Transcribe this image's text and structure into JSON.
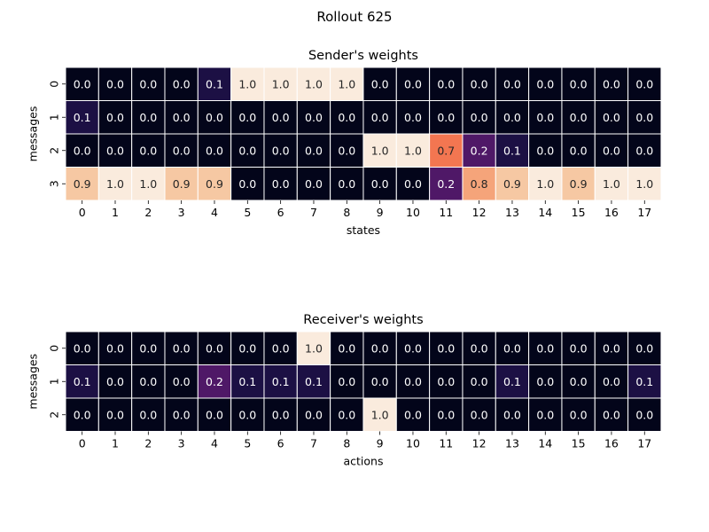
{
  "suptitle": "Rollout 625",
  "chart_data": [
    {
      "type": "heatmap",
      "title": "Sender's weights",
      "xlabel": "states",
      "ylabel": "messages",
      "x_ticks": [
        "0",
        "1",
        "2",
        "3",
        "4",
        "5",
        "6",
        "7",
        "8",
        "9",
        "10",
        "11",
        "12",
        "13",
        "14",
        "15",
        "16",
        "17"
      ],
      "y_ticks": [
        "0",
        "1",
        "2",
        "3"
      ],
      "values": [
        [
          0.0,
          0.0,
          0.0,
          0.0,
          0.1,
          1.0,
          1.0,
          1.0,
          1.0,
          0.0,
          0.0,
          0.0,
          0.0,
          0.0,
          0.0,
          0.0,
          0.0,
          0.0
        ],
        [
          0.1,
          0.0,
          0.0,
          0.0,
          0.0,
          0.0,
          0.0,
          0.0,
          0.0,
          0.0,
          0.0,
          0.0,
          0.0,
          0.0,
          0.0,
          0.0,
          0.0,
          0.0
        ],
        [
          0.0,
          0.0,
          0.0,
          0.0,
          0.0,
          0.0,
          0.0,
          0.0,
          0.0,
          1.0,
          1.0,
          0.7,
          0.2,
          0.1,
          0.0,
          0.0,
          0.0,
          0.0
        ],
        [
          0.9,
          1.0,
          1.0,
          0.9,
          0.9,
          0.0,
          0.0,
          0.0,
          0.0,
          0.0,
          0.0,
          0.2,
          0.8,
          0.9,
          1.0,
          0.9,
          1.0,
          1.0
        ]
      ],
      "value_range": [
        0,
        1
      ],
      "colormap": "rocket",
      "colorbar": false,
      "annotated": true
    },
    {
      "type": "heatmap",
      "title": "Receiver's weights",
      "xlabel": "actions",
      "ylabel": "messages",
      "x_ticks": [
        "0",
        "1",
        "2",
        "3",
        "4",
        "5",
        "6",
        "7",
        "8",
        "9",
        "10",
        "11",
        "12",
        "13",
        "14",
        "15",
        "16",
        "17"
      ],
      "y_ticks": [
        "0",
        "1",
        "2"
      ],
      "values": [
        [
          0.0,
          0.0,
          0.0,
          0.0,
          0.0,
          0.0,
          0.0,
          1.0,
          0.0,
          0.0,
          0.0,
          0.0,
          0.0,
          0.0,
          0.0,
          0.0,
          0.0,
          0.0
        ],
        [
          0.1,
          0.0,
          0.0,
          0.0,
          0.2,
          0.1,
          0.1,
          0.1,
          0.0,
          0.0,
          0.0,
          0.0,
          0.0,
          0.1,
          0.0,
          0.0,
          0.0,
          0.1
        ],
        [
          0.0,
          0.0,
          0.0,
          0.0,
          0.0,
          0.0,
          0.0,
          0.0,
          0.0,
          1.0,
          0.0,
          0.0,
          0.0,
          0.0,
          0.0,
          0.0,
          0.0,
          0.0
        ]
      ],
      "value_range": [
        0,
        1
      ],
      "colormap": "rocket",
      "colorbar": false,
      "annotated": true
    }
  ]
}
